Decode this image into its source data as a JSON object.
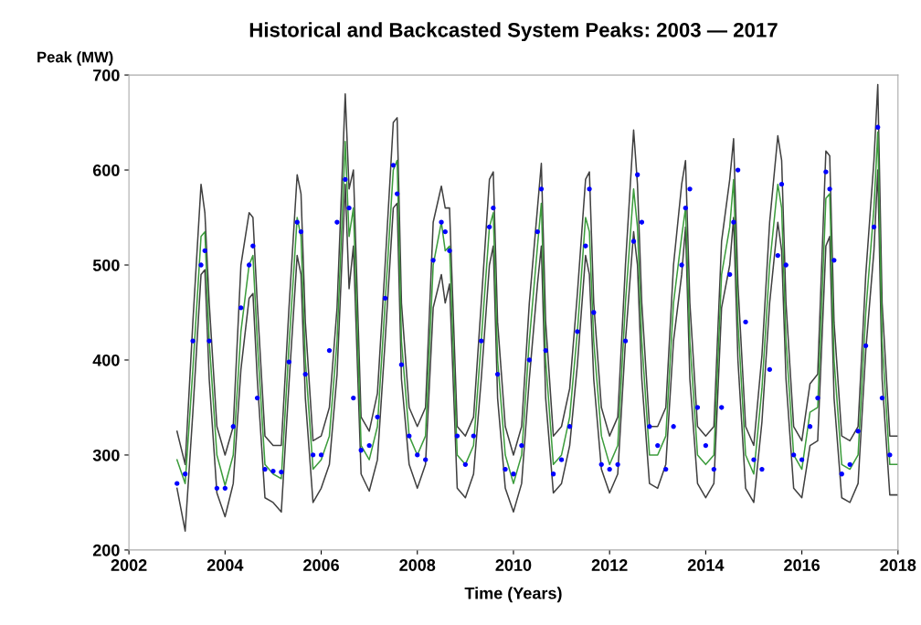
{
  "chart_data": {
    "type": "line",
    "title": "Historical and Backcasted System Peaks: 2003 — 2017",
    "xlabel": "Time (Years)",
    "ylabel": "Peak (MW)",
    "xlim": [
      2002,
      2018
    ],
    "xticks": [
      2002,
      2004,
      2006,
      2008,
      2010,
      2012,
      2014,
      2016,
      2018
    ],
    "ylim": [
      200,
      700
    ],
    "yticks": [
      200,
      300,
      400,
      500,
      600,
      700
    ],
    "grid": false,
    "legend": false,
    "x": [
      2003,
      2003.17,
      2003.33,
      2003.5,
      2003.58,
      2003.67,
      2003.83,
      2004,
      2004.17,
      2004.33,
      2004.5,
      2004.58,
      2004.67,
      2004.83,
      2005,
      2005.17,
      2005.33,
      2005.5,
      2005.58,
      2005.67,
      2005.83,
      2006,
      2006.17,
      2006.33,
      2006.5,
      2006.58,
      2006.67,
      2006.83,
      2007,
      2007.17,
      2007.33,
      2007.5,
      2007.58,
      2007.67,
      2007.83,
      2008,
      2008.17,
      2008.33,
      2008.5,
      2008.58,
      2008.67,
      2008.83,
      2009,
      2009.17,
      2009.33,
      2009.5,
      2009.58,
      2009.67,
      2009.83,
      2010,
      2010.17,
      2010.33,
      2010.5,
      2010.58,
      2010.67,
      2010.83,
      2011,
      2011.17,
      2011.33,
      2011.5,
      2011.58,
      2011.67,
      2011.83,
      2012,
      2012.17,
      2012.33,
      2012.5,
      2012.58,
      2012.67,
      2012.83,
      2013,
      2013.17,
      2013.33,
      2013.5,
      2013.58,
      2013.67,
      2013.83,
      2014,
      2014.17,
      2014.33,
      2014.5,
      2014.58,
      2014.67,
      2014.83,
      2015,
      2015.17,
      2015.33,
      2015.5,
      2015.58,
      2015.67,
      2015.83,
      2016,
      2016.17,
      2016.33,
      2016.5,
      2016.58,
      2016.67,
      2016.83,
      2017,
      2017.17,
      2017.33,
      2017.5,
      2017.58,
      2017.67,
      2017.83,
      2018
    ],
    "series": [
      {
        "color": "#404040",
        "values": [
          325,
          290,
          440,
          585,
          555,
          460,
          330,
          300,
          330,
          500,
          555,
          550,
          460,
          320,
          310,
          310,
          455,
          595,
          575,
          440,
          315,
          320,
          350,
          455,
          680,
          580,
          600,
          340,
          325,
          365,
          500,
          650,
          655,
          460,
          350,
          330,
          350,
          545,
          583,
          560,
          560,
          330,
          320,
          340,
          460,
          590,
          598,
          440,
          330,
          300,
          330,
          460,
          560,
          607,
          440,
          320,
          330,
          370,
          470,
          590,
          598,
          460,
          350,
          320,
          340,
          500,
          642,
          585,
          460,
          330,
          330,
          350,
          500,
          585,
          610,
          460,
          330,
          320,
          330,
          525,
          590,
          633,
          480,
          330,
          310,
          405,
          545,
          636,
          610,
          460,
          330,
          315,
          375,
          385,
          620,
          615,
          440,
          320,
          315,
          330,
          490,
          610,
          690,
          460,
          320,
          320
        ]
      },
      {
        "color": "#404040",
        "values": [
          265,
          220,
          345,
          490,
          495,
          380,
          260,
          235,
          270,
          390,
          465,
          470,
          380,
          255,
          250,
          240,
          375,
          510,
          490,
          360,
          250,
          265,
          290,
          385,
          585,
          475,
          520,
          280,
          262,
          295,
          420,
          560,
          565,
          380,
          290,
          265,
          290,
          455,
          490,
          460,
          480,
          265,
          255,
          280,
          380,
          500,
          520,
          360,
          265,
          240,
          270,
          380,
          480,
          520,
          360,
          260,
          270,
          310,
          395,
          510,
          490,
          380,
          285,
          260,
          280,
          420,
          535,
          500,
          380,
          270,
          265,
          290,
          420,
          490,
          540,
          380,
          270,
          255,
          270,
          455,
          500,
          550,
          400,
          265,
          250,
          335,
          460,
          545,
          515,
          380,
          265,
          255,
          310,
          315,
          520,
          530,
          360,
          255,
          250,
          270,
          410,
          515,
          600,
          380,
          258,
          258
        ]
      },
      {
        "color": "#3c9c3c",
        "values": [
          295,
          270,
          390,
          530,
          535,
          420,
          300,
          268,
          300,
          430,
          500,
          510,
          420,
          290,
          280,
          275,
          415,
          550,
          530,
          400,
          285,
          295,
          320,
          420,
          630,
          530,
          560,
          310,
          295,
          330,
          460,
          600,
          610,
          420,
          320,
          300,
          320,
          500,
          545,
          515,
          520,
          300,
          290,
          310,
          420,
          540,
          555,
          400,
          300,
          270,
          300,
          420,
          520,
          565,
          400,
          290,
          300,
          340,
          430,
          550,
          535,
          420,
          320,
          290,
          310,
          460,
          580,
          540,
          420,
          300,
          300,
          320,
          460,
          530,
          560,
          420,
          300,
          290,
          300,
          490,
          540,
          590,
          440,
          300,
          280,
          370,
          500,
          585,
          560,
          420,
          300,
          285,
          345,
          350,
          570,
          575,
          400,
          290,
          285,
          300,
          450,
          560,
          640,
          420,
          290,
          290
        ]
      },
      {
        "type": "scatter",
        "color": "#0000ff",
        "marker": "circle",
        "x": [
          2003,
          2003.17,
          2003.33,
          2003.5,
          2003.58,
          2003.67,
          2003.83,
          2004,
          2004.17,
          2004.33,
          2004.5,
          2004.58,
          2004.67,
          2004.83,
          2005,
          2005.17,
          2005.33,
          2005.5,
          2005.58,
          2005.67,
          2005.83,
          2006,
          2006.17,
          2006.33,
          2006.5,
          2006.58,
          2006.67,
          2006.83,
          2007,
          2007.17,
          2007.33,
          2007.5,
          2007.58,
          2007.67,
          2007.83,
          2008,
          2008.17,
          2008.33,
          2008.5,
          2008.58,
          2008.67,
          2008.83,
          2009,
          2009.17,
          2009.33,
          2009.5,
          2009.58,
          2009.67,
          2009.83,
          2010,
          2010.17,
          2010.33,
          2010.5,
          2010.58,
          2010.67,
          2010.83,
          2011,
          2011.17,
          2011.33,
          2011.5,
          2011.58,
          2011.67,
          2011.83,
          2012,
          2012.17,
          2012.33,
          2012.5,
          2012.58,
          2012.67,
          2012.83,
          2013,
          2013.17,
          2013.33,
          2013.5,
          2013.58,
          2013.67,
          2013.83,
          2014,
          2014.17,
          2014.33,
          2014.5,
          2014.58,
          2014.67,
          2014.83,
          2015,
          2015.17,
          2015.33,
          2015.5,
          2015.58,
          2015.67,
          2015.83,
          2016,
          2016.17,
          2016.33,
          2016.5,
          2016.58,
          2016.67,
          2016.83,
          2017,
          2017.17,
          2017.33,
          2017.5,
          2017.58,
          2017.67,
          2017.83
        ],
        "values": [
          270,
          280,
          420,
          500,
          515,
          420,
          265,
          265,
          330,
          455,
          500,
          520,
          360,
          285,
          283,
          282,
          398,
          545,
          535,
          385,
          300,
          300,
          410,
          545,
          590,
          560,
          360,
          305,
          310,
          340,
          465,
          605,
          575,
          395,
          320,
          300,
          295,
          505,
          545,
          535,
          515,
          320,
          290,
          320,
          420,
          540,
          560,
          385,
          285,
          280,
          310,
          400,
          535,
          580,
          410,
          280,
          295,
          330,
          430,
          520,
          580,
          450,
          290,
          285,
          290,
          420,
          525,
          595,
          545,
          330,
          310,
          285,
          330,
          500,
          560,
          580,
          350,
          310,
          285,
          350,
          490,
          545,
          600,
          440,
          295,
          285,
          390,
          510,
          585,
          500,
          300,
          295,
          330,
          360,
          598,
          580,
          505,
          280,
          290,
          325,
          415,
          540,
          645,
          360,
          300
        ]
      }
    ]
  }
}
